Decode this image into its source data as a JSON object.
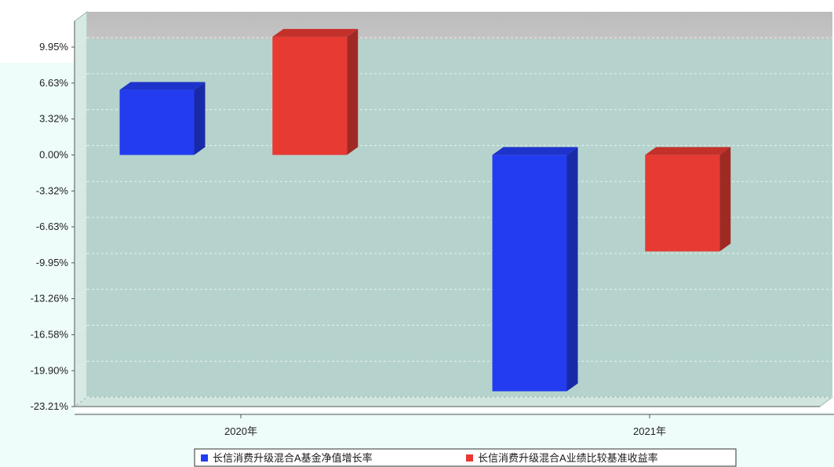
{
  "chart_data": {
    "type": "bar",
    "categories": [
      "2020年",
      "2021年"
    ],
    "series": [
      {
        "name": "长信消费升级混合A基金净值增长率",
        "values": [
          6.0,
          -21.8
        ],
        "color": "#233cf0"
      },
      {
        "name": "长信消费升级混合A业绩比较基准收益率",
        "values": [
          10.9,
          -8.9
        ],
        "color": "#e63a33"
      }
    ],
    "y_ticks": [
      "-23.21%",
      "-19.90%",
      "-16.58%",
      "-13.26%",
      "-9.95%",
      "-6.63%",
      "-3.32%",
      "0.00%",
      "3.32%",
      "6.63%",
      "9.95%"
    ],
    "y_tick_values": [
      -23.21,
      -19.9,
      -16.58,
      -13.26,
      -9.95,
      -6.63,
      -3.32,
      0.0,
      3.32,
      6.63,
      9.95
    ],
    "ylim": [
      -23.21,
      9.95
    ],
    "grid": true,
    "legend_position": "bottom",
    "colors": {
      "plot_background": "#b5d3cc",
      "top_band": "#bdbdbd",
      "left_wall": "#d6eae3",
      "floor": "#cfe5de",
      "gridline": "#e8f2ef",
      "axis": "#555555",
      "page_tint": "#eefcfa"
    }
  }
}
